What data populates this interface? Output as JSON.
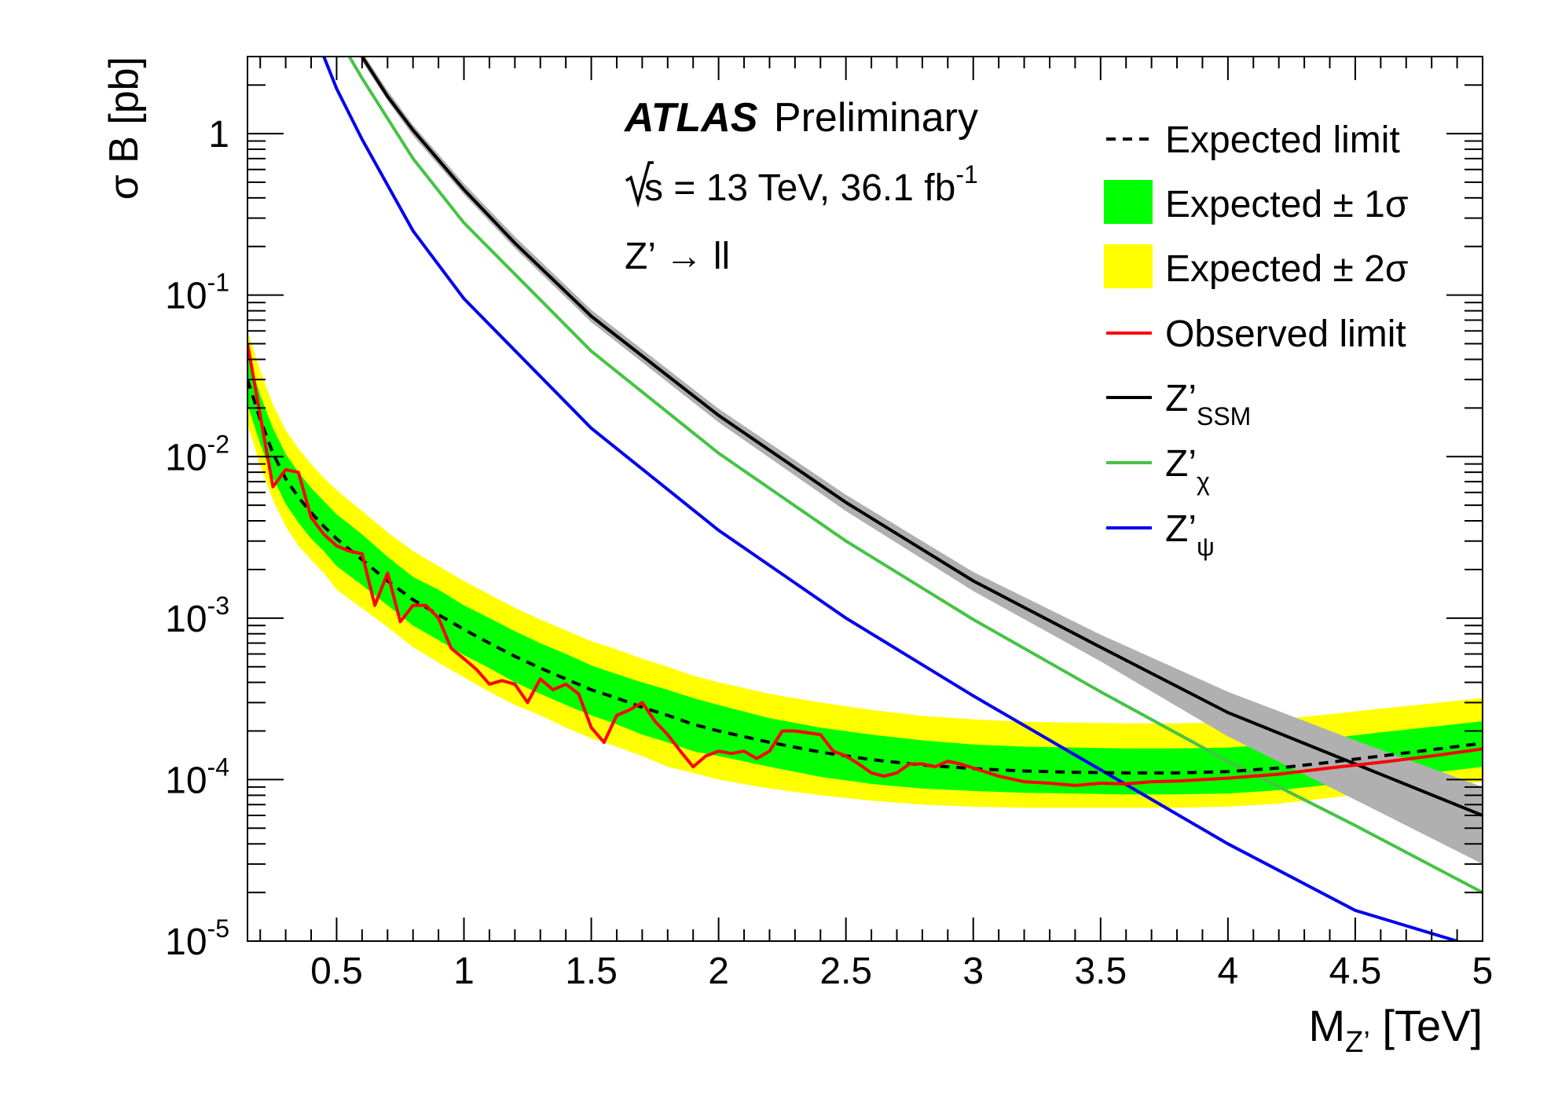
{
  "chart_data": {
    "type": "line",
    "experiment": "ATLAS",
    "status": "Preliminary",
    "energy_label_prefix": "s = 13 TeV, 36.1 fb",
    "energy_label_sup": "-1",
    "process": "Z’ → ll",
    "xlabel_main": "M",
    "xlabel_sub": "Z’",
    "xlabel_unit": " [TeV]",
    "ylabel": "σ B [pb]",
    "xlim": [
      0.15,
      5.0
    ],
    "ylim": [
      1e-05,
      3.0
    ],
    "y_scale": "log",
    "x_ticks": [
      {
        "v": 0.5,
        "label": "0.5"
      },
      {
        "v": 1.0,
        "label": "1"
      },
      {
        "v": 1.5,
        "label": "1.5"
      },
      {
        "v": 2.0,
        "label": "2"
      },
      {
        "v": 2.5,
        "label": "2.5"
      },
      {
        "v": 3.0,
        "label": "3"
      },
      {
        "v": 3.5,
        "label": "3.5"
      },
      {
        "v": 4.0,
        "label": "4"
      },
      {
        "v": 4.5,
        "label": "4.5"
      },
      {
        "v": 5.0,
        "label": "5"
      }
    ],
    "y_ticks": [
      {
        "v": 1,
        "base": "1",
        "exp": ""
      },
      {
        "v": 0.1,
        "base": "10",
        "exp": "-1"
      },
      {
        "v": 0.01,
        "base": "10",
        "exp": "-2"
      },
      {
        "v": 0.001,
        "base": "10",
        "exp": "-3"
      },
      {
        "v": 0.0001,
        "base": "10",
        "exp": "-4"
      },
      {
        "v": 1e-05,
        "base": "10",
        "exp": "-5"
      }
    ],
    "legend": [
      {
        "key": "expected",
        "label": "Expected limit",
        "sub": "",
        "style": "dashed",
        "color": "#000000"
      },
      {
        "key": "band1",
        "label": "Expected ± 1σ",
        "sub": "",
        "style": "box",
        "color": "#00ff00"
      },
      {
        "key": "band2",
        "label": "Expected ± 2σ",
        "sub": "",
        "style": "box",
        "color": "#ffff00"
      },
      {
        "key": "observed",
        "label": "Observed limit",
        "sub": "",
        "style": "line",
        "color": "#ff0000"
      },
      {
        "key": "ssm",
        "label": "Z’",
        "sub": "SSM",
        "style": "line",
        "color": "#000000"
      },
      {
        "key": "chi",
        "label": "Z’",
        "sub": "χ",
        "style": "line",
        "color": "#44c444"
      },
      {
        "key": "psi",
        "label": "Z’",
        "sub": "ψ",
        "style": "line",
        "color": "#0000ee"
      }
    ],
    "expected": {
      "x": [
        0.15,
        0.2,
        0.25,
        0.3,
        0.35,
        0.4,
        0.45,
        0.5,
        0.6,
        0.7,
        0.8,
        0.9,
        1.0,
        1.1,
        1.2,
        1.3,
        1.4,
        1.5,
        1.6,
        1.7,
        1.8,
        1.9,
        2.0,
        2.2,
        2.4,
        2.6,
        2.8,
        3.0,
        3.2,
        3.4,
        3.6,
        3.8,
        4.0,
        4.2,
        4.4,
        4.6,
        4.8,
        5.0
      ],
      "y": [
        0.03,
        0.017,
        0.0105,
        0.0073,
        0.0056,
        0.0045,
        0.0037,
        0.0031,
        0.0023,
        0.0017,
        0.0013,
        0.00105,
        0.00085,
        0.0007,
        0.00058,
        0.00049,
        0.00042,
        0.00036,
        0.00032,
        0.00028,
        0.00025,
        0.00022,
        0.0002,
        0.00017,
        0.000148,
        0.000133,
        0.000123,
        0.000117,
        0.000113,
        0.000111,
        0.00011,
        0.00011,
        0.000112,
        0.000118,
        0.000128,
        0.00014,
        0.000153,
        0.000168
      ]
    },
    "band1": {
      "x": [
        0.15,
        0.2,
        0.25,
        0.3,
        0.35,
        0.4,
        0.45,
        0.5,
        0.6,
        0.7,
        0.8,
        0.9,
        1.0,
        1.1,
        1.2,
        1.3,
        1.4,
        1.5,
        1.6,
        1.7,
        1.8,
        1.9,
        2.0,
        2.2,
        2.4,
        2.6,
        2.8,
        3.0,
        3.2,
        3.4,
        3.6,
        3.8,
        4.0,
        4.2,
        4.4,
        4.6,
        4.8,
        5.0
      ],
      "lo": [
        0.021,
        0.012,
        0.0074,
        0.0051,
        0.0039,
        0.0031,
        0.0026,
        0.0021,
        0.0016,
        0.0012,
        0.0009,
        0.00073,
        0.00059,
        0.00049,
        0.0004,
        0.00034,
        0.00029,
        0.00025,
        0.00022,
        0.00019,
        0.00017,
        0.00015,
        0.00014,
        0.00012,
        0.000104,
        9.4e-05,
        8.8e-05,
        8.5e-05,
        8.3e-05,
        8.2e-05,
        8.1e-05,
        8.1e-05,
        8.2e-05,
        8.6e-05,
        9.3e-05,
        0.000102,
        0.00011,
        0.00012
      ],
      "hi": [
        0.043,
        0.024,
        0.015,
        0.0104,
        0.008,
        0.0064,
        0.0053,
        0.0044,
        0.0033,
        0.0024,
        0.0018,
        0.0015,
        0.0012,
        0.001,
        0.00083,
        0.0007,
        0.0006,
        0.00051,
        0.00045,
        0.0004,
        0.00036,
        0.00032,
        0.00029,
        0.00024,
        0.00021,
        0.00019,
        0.000175,
        0.000165,
        0.00016,
        0.000158,
        0.000156,
        0.000156,
        0.000158,
        0.000166,
        0.00018,
        0.000196,
        0.000212,
        0.00023
      ]
    },
    "band2": {
      "x": [
        0.15,
        0.2,
        0.25,
        0.3,
        0.35,
        0.4,
        0.45,
        0.5,
        0.6,
        0.7,
        0.8,
        0.9,
        1.0,
        1.1,
        1.2,
        1.3,
        1.4,
        1.5,
        1.6,
        1.7,
        1.8,
        1.9,
        2.0,
        2.2,
        2.4,
        2.6,
        2.8,
        3.0,
        3.2,
        3.4,
        3.6,
        3.8,
        4.0,
        4.2,
        4.4,
        4.6,
        4.8,
        5.0
      ],
      "lo": [
        0.016,
        0.0088,
        0.0054,
        0.0037,
        0.0028,
        0.0023,
        0.0019,
        0.0015,
        0.00115,
        0.00088,
        0.00066,
        0.00053,
        0.00043,
        0.00035,
        0.00029,
        0.00025,
        0.00021,
        0.00018,
        0.00016,
        0.00014,
        0.00012,
        0.00011,
        0.0001,
        8.8e-05,
        8e-05,
        7.4e-05,
        7e-05,
        6.8e-05,
        6.7e-05,
        6.7e-05,
        6.7e-05,
        6.7e-05,
        6.8e-05,
        7.1e-05,
        7.7e-05,
        8.4e-05,
        9e-05,
        9.7e-05
      ],
      "hi": [
        0.06,
        0.034,
        0.021,
        0.0146,
        0.0112,
        0.009,
        0.0074,
        0.0062,
        0.0046,
        0.0034,
        0.0026,
        0.0021,
        0.0017,
        0.0014,
        0.00116,
        0.00098,
        0.00084,
        0.00072,
        0.00064,
        0.00056,
        0.0005,
        0.00044,
        0.0004,
        0.00034,
        0.0003,
        0.00027,
        0.000248,
        0.000236,
        0.000228,
        0.000225,
        0.000223,
        0.000223,
        0.000226,
        0.000236,
        0.000254,
        0.000275,
        0.000296,
        0.00032
      ]
    },
    "observed": {
      "x": [
        0.15,
        0.2,
        0.25,
        0.3,
        0.35,
        0.4,
        0.45,
        0.5,
        0.55,
        0.6,
        0.65,
        0.7,
        0.75,
        0.8,
        0.85,
        0.9,
        0.95,
        1.0,
        1.05,
        1.1,
        1.15,
        1.2,
        1.25,
        1.3,
        1.35,
        1.4,
        1.45,
        1.5,
        1.55,
        1.6,
        1.65,
        1.7,
        1.75,
        1.8,
        1.85,
        1.9,
        1.95,
        2.0,
        2.05,
        2.1,
        2.15,
        2.2,
        2.25,
        2.3,
        2.4,
        2.45,
        2.5,
        2.55,
        2.6,
        2.65,
        2.7,
        2.75,
        2.8,
        2.85,
        2.9,
        2.95,
        3.0,
        3.1,
        3.2,
        3.3,
        3.4,
        3.5,
        3.6,
        3.7,
        3.8,
        3.9,
        4.0,
        4.2,
        4.4,
        4.6,
        4.8,
        5.0
      ],
      "y": [
        0.05,
        0.018,
        0.0065,
        0.0083,
        0.008,
        0.0042,
        0.0033,
        0.0028,
        0.0026,
        0.0025,
        0.0012,
        0.0019,
        0.00095,
        0.0012,
        0.0012,
        0.001,
        0.00065,
        0.00056,
        0.00048,
        0.00039,
        0.00041,
        0.00039,
        0.0003,
        0.00042,
        0.00036,
        0.00039,
        0.00034,
        0.00021,
        0.00017,
        0.00025,
        0.00027,
        0.0003,
        0.00023,
        0.00019,
        0.00015,
        0.00012,
        0.00014,
        0.00015,
        0.000145,
        0.00015,
        0.000135,
        0.00015,
        0.0002,
        0.0002,
        0.00019,
        0.00015,
        0.00014,
        0.000125,
        0.00011,
        0.000105,
        0.00011,
        0.000125,
        0.000125,
        0.00012,
        0.00013,
        0.000125,
        0.000118,
        0.000105,
        9.7e-05,
        9.5e-05,
        9.2e-05,
        9.5e-05,
        9.4e-05,
        9.7e-05,
        9.8e-05,
        0.0001,
        0.000102,
        0.000108,
        0.000118,
        0.000128,
        0.00014,
        0.000155
      ]
    },
    "ssm": {
      "x": [
        0.6,
        0.7,
        0.8,
        1.0,
        1.2,
        1.5,
        2.0,
        2.5,
        3.0,
        3.5,
        4.0,
        4.5,
        5.0
      ],
      "y": [
        3.0,
        1.7,
        1.05,
        0.45,
        0.21,
        0.074,
        0.018,
        0.0052,
        0.0017,
        0.00066,
        0.00026,
        0.000125,
        6e-05
      ],
      "band_lo": [
        2.8,
        1.6,
        0.97,
        0.42,
        0.195,
        0.068,
        0.0163,
        0.0046,
        0.00147,
        0.00054,
        0.000185,
        7.5e-05,
        3e-05
      ],
      "band_hi": [
        3.2,
        1.85,
        1.13,
        0.49,
        0.23,
        0.081,
        0.0198,
        0.0058,
        0.00193,
        0.00079,
        0.00035,
        0.000175,
        9e-05
      ]
    },
    "chi": {
      "x": [
        0.55,
        0.6,
        0.8,
        1.0,
        1.5,
        2.0,
        2.5,
        3.0,
        3.5,
        4.0,
        4.5,
        5.0
      ],
      "y": [
        3.0,
        2.2,
        0.7,
        0.28,
        0.045,
        0.0105,
        0.003,
        0.00098,
        0.00035,
        0.00013,
        5.2e-05,
        2e-05
      ]
    },
    "psi": {
      "x": [
        0.45,
        0.5,
        0.6,
        0.8,
        1.0,
        1.5,
        2.0,
        2.5,
        3.0,
        3.5,
        4.0,
        4.5,
        4.9
      ],
      "y": [
        3.0,
        1.9,
        0.92,
        0.25,
        0.095,
        0.015,
        0.0035,
        0.001,
        0.00033,
        0.000115,
        4e-05,
        1.55e-05,
        1e-05
      ]
    }
  }
}
